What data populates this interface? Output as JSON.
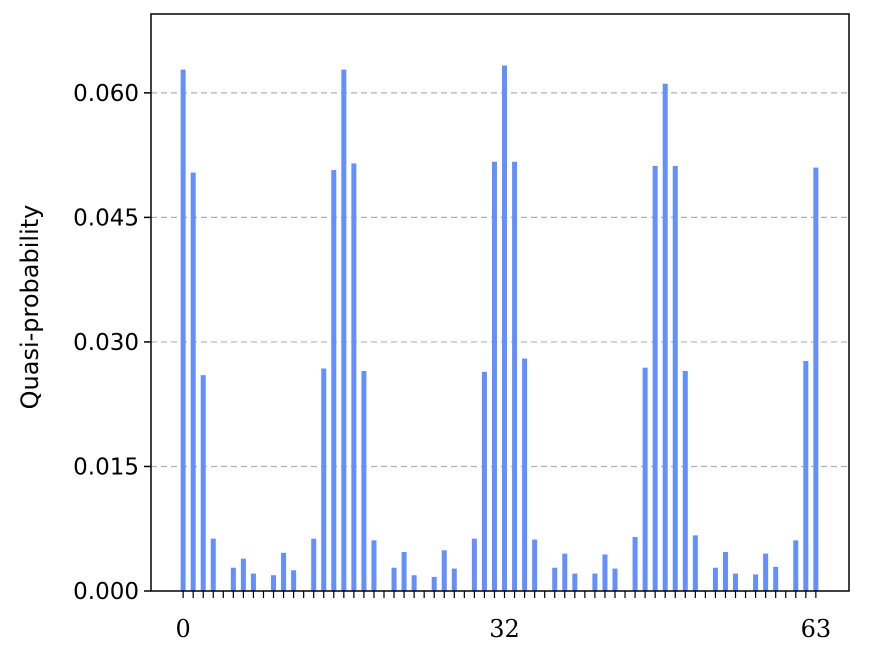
{
  "chart_data": {
    "type": "bar",
    "title": "",
    "xlabel": "",
    "ylabel": "Quasi-probability",
    "ylim": [
      0,
      0.0695
    ],
    "xlim": [
      -3.2,
      66.3
    ],
    "yticks": [
      "0.000",
      "0.015",
      "0.030",
      "0.045",
      "0.060"
    ],
    "ytick_values": [
      0,
      0.015,
      0.03,
      0.045,
      0.06
    ],
    "xticks": [
      "0",
      "32",
      "63"
    ],
    "xtick_values": [
      0,
      32,
      63
    ],
    "grid": "y-dashed",
    "bar_color": "#648fff",
    "x": [
      0,
      1,
      2,
      3,
      5,
      6,
      7,
      9,
      10,
      11,
      13,
      14,
      15,
      16,
      17,
      18,
      19,
      21,
      22,
      23,
      25,
      26,
      27,
      29,
      30,
      31,
      32,
      33,
      34,
      35,
      37,
      38,
      39,
      41,
      42,
      43,
      45,
      46,
      47,
      48,
      49,
      50,
      51,
      53,
      54,
      55,
      57,
      58,
      59,
      61,
      62,
      63
    ],
    "values": [
      0.0628,
      0.0504,
      0.026,
      0.0063,
      0.0028,
      0.0039,
      0.0021,
      0.0019,
      0.0046,
      0.0025,
      0.0063,
      0.0268,
      0.0507,
      0.0628,
      0.0515,
      0.0265,
      0.0061,
      0.0028,
      0.0047,
      0.0019,
      0.0017,
      0.0049,
      0.0027,
      0.0063,
      0.0264,
      0.0517,
      0.0633,
      0.0517,
      0.028,
      0.0062,
      0.0028,
      0.0045,
      0.0021,
      0.0021,
      0.0044,
      0.0027,
      0.0065,
      0.0269,
      0.0512,
      0.0611,
      0.0512,
      0.0265,
      0.0067,
      0.0028,
      0.0047,
      0.0021,
      0.002,
      0.0045,
      0.0029,
      0.0061,
      0.0277,
      0.051
    ]
  }
}
